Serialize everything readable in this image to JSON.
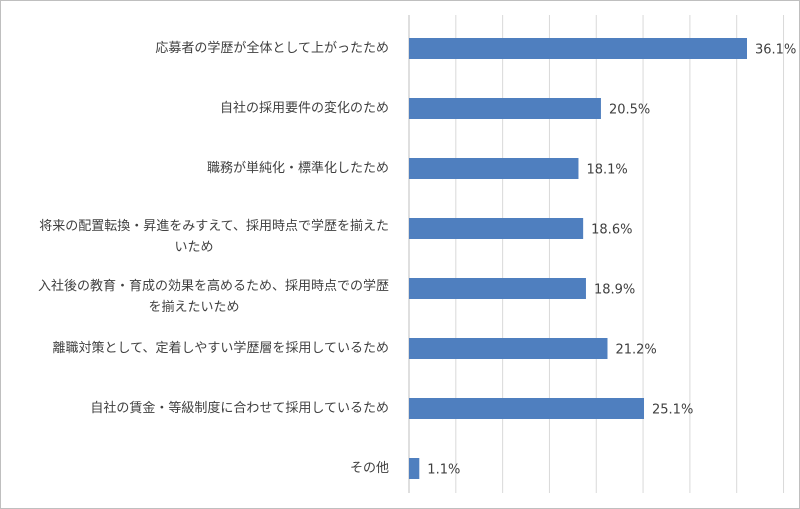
{
  "chart_data": {
    "type": "bar",
    "orientation": "horizontal",
    "categories": [
      [
        "応募者の学歴が全体として上がったため"
      ],
      [
        "自社の採用要件の変化のため"
      ],
      [
        "職務が単純化・標準化したため"
      ],
      [
        "将来の配置転換・昇進をみすえて、採用時点で学歴を揃えた",
        "いため"
      ],
      [
        "入社後の教育・育成の効果を高めるため、採用時点での学歴",
        "を揃えたいため"
      ],
      [
        "離職対策として、定着しやすい学歴層を採用しているため"
      ],
      [
        "自社の賃金・等級制度に合わせて採用しているため"
      ],
      [
        "その他"
      ]
    ],
    "values": [
      36.1,
      20.5,
      18.1,
      18.6,
      18.9,
      21.2,
      25.1,
      1.1
    ],
    "value_labels": [
      "36.1%",
      "20.5%",
      "18.1%",
      "18.6%",
      "18.9%",
      "21.2%",
      "25.1%",
      "1.1%"
    ],
    "xlim": [
      0,
      40
    ],
    "x_grid_step": 5,
    "grid": true,
    "bar_color": "#4f7fbf",
    "grid_color": "#d9d9d9"
  }
}
